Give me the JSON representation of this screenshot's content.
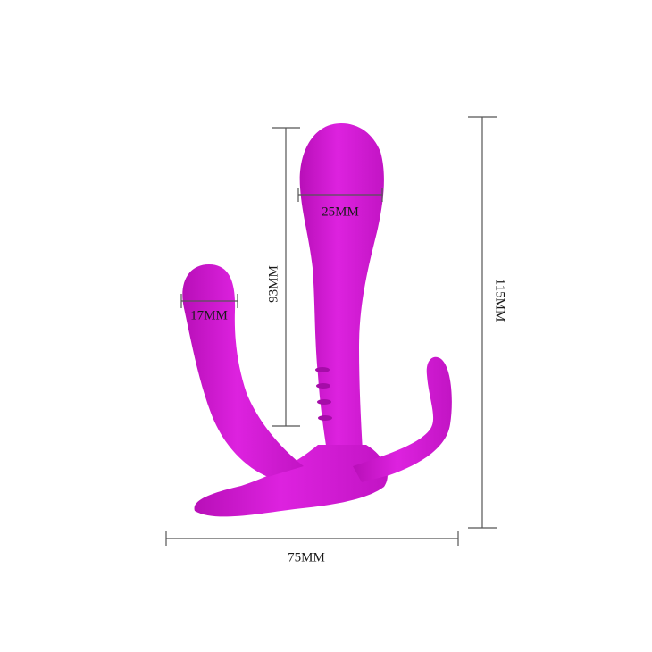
{
  "figure": {
    "product_color": "#d318d6",
    "dimension_line_color": "#555555",
    "dimensions": {
      "head_width": "25MM",
      "arm_tip_width": "17MM",
      "insertable_length": "93MM",
      "total_height": "115MM",
      "total_width": "75MM"
    }
  }
}
